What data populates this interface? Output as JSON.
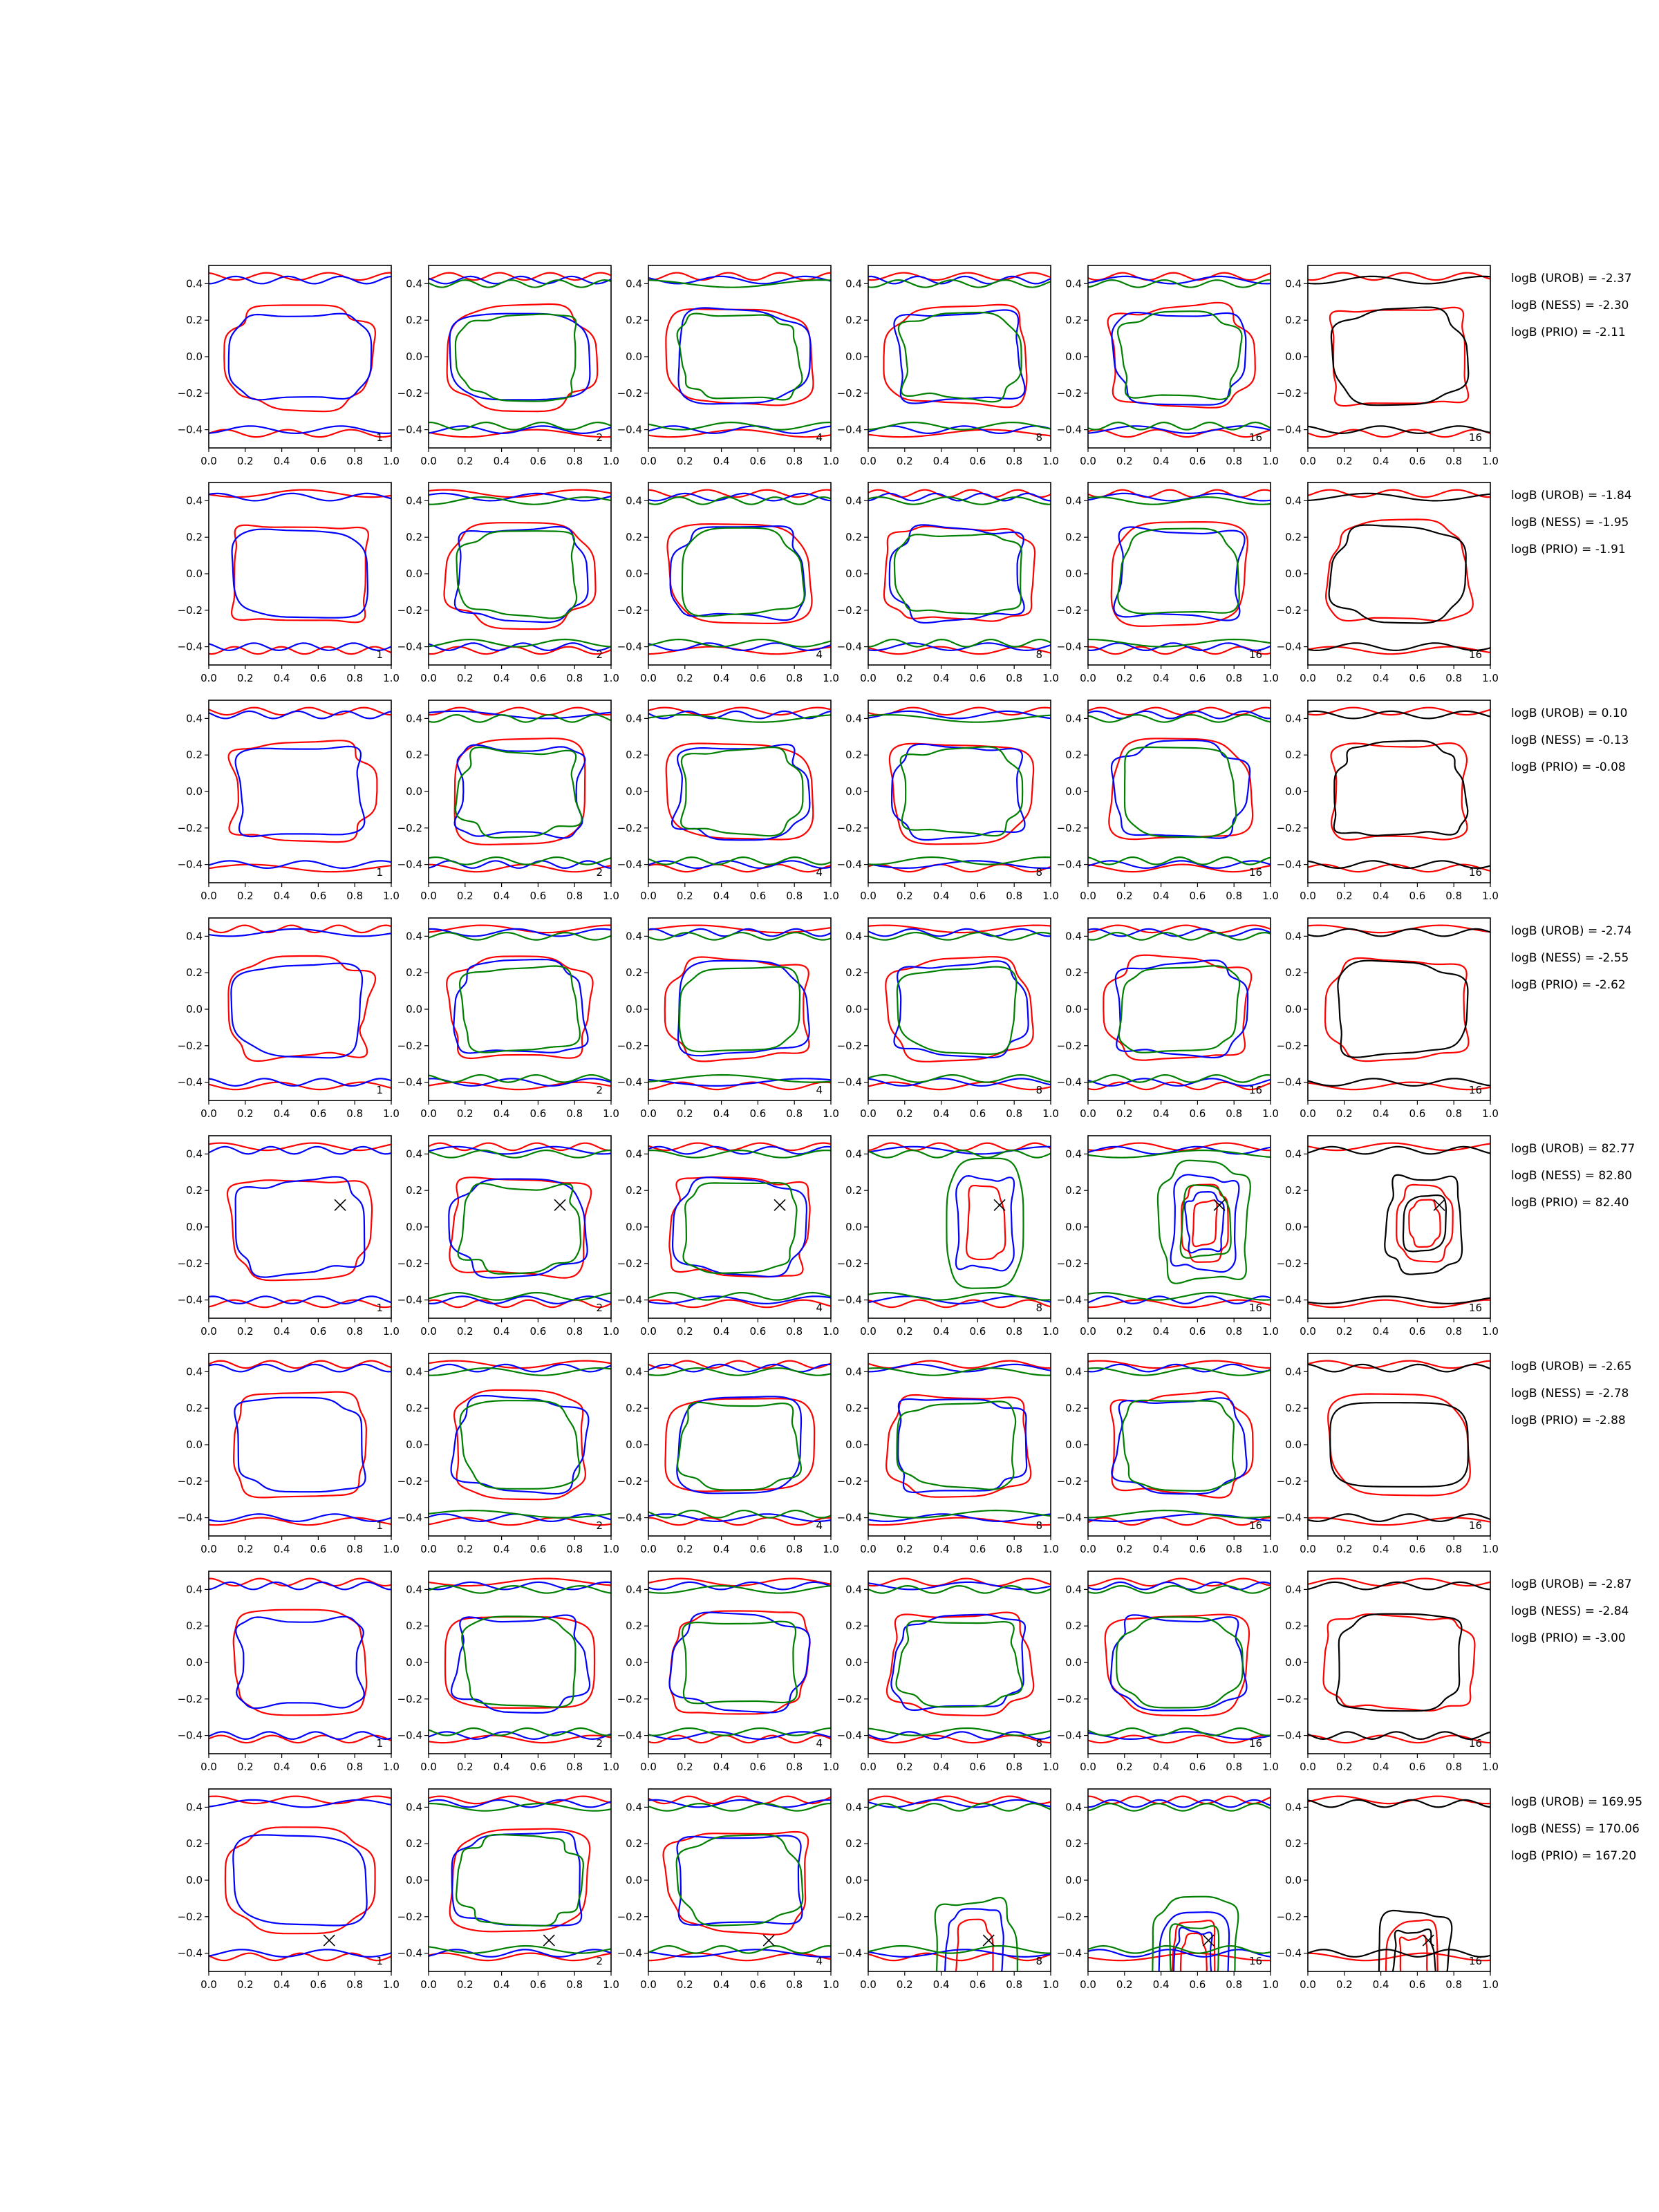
{
  "figure": {
    "rows": 8,
    "columns": 6,
    "column_tags": [
      "1",
      "2",
      "4",
      "8",
      "16",
      "16"
    ],
    "x_ticks": [
      "0.0",
      "0.2",
      "0.4",
      "0.6",
      "0.8",
      "1.0"
    ],
    "y_ticks": [
      "0.4",
      "0.2",
      "0.0",
      "−0.2",
      "−0.4"
    ],
    "colors": {
      "red": "#ff0000",
      "blue": "#0000ff",
      "green": "#008000",
      "black": "#000000"
    }
  },
  "chart_data": {
    "type": "contour-grid",
    "xlim": [
      0,
      1
    ],
    "ylim": [
      -0.5,
      0.5
    ],
    "x_tick_values": [
      0,
      0.2,
      0.4,
      0.6,
      0.8,
      1.0
    ],
    "y_tick_values": [
      0.4,
      0.2,
      0,
      -0.2,
      -0.4
    ],
    "rows": [
      {
        "marker": null,
        "log_bayes": [
          "logB (UROB) = -2.37",
          "logB (NESS) = -2.30",
          "logB (PRIO) = -2.11"
        ]
      },
      {
        "marker": null,
        "log_bayes": [
          "logB (UROB) = -1.84",
          "logB (NESS) = -1.95",
          "logB (PRIO) = -1.91"
        ]
      },
      {
        "marker": null,
        "log_bayes": [
          "logB (UROB) = 0.10",
          "logB (NESS) = -0.13",
          "logB (PRIO) = -0.08"
        ]
      },
      {
        "marker": null,
        "log_bayes": [
          "logB (UROB) = -2.74",
          "logB (NESS) = -2.55",
          "logB (PRIO) = -2.62"
        ]
      },
      {
        "marker": {
          "x": 0.72,
          "y": 0.12
        },
        "log_bayes": [
          "logB (UROB) = 82.77",
          "logB (NESS) = 82.80",
          "logB (PRIO) = 82.40"
        ]
      },
      {
        "marker": null,
        "log_bayes": [
          "logB (UROB) = -2.65",
          "logB (NESS) = -2.78",
          "logB (PRIO) = -2.88"
        ]
      },
      {
        "marker": null,
        "log_bayes": [
          "logB (UROB) = -2.87",
          "logB (NESS) = -2.84",
          "logB (PRIO) = -3.00"
        ]
      },
      {
        "marker": {
          "x": 0.66,
          "y": -0.33
        },
        "log_bayes": [
          "logB (UROB) = 169.95",
          "logB (NESS) = 170.06",
          "logB (PRIO) = 167.20"
        ]
      }
    ]
  }
}
